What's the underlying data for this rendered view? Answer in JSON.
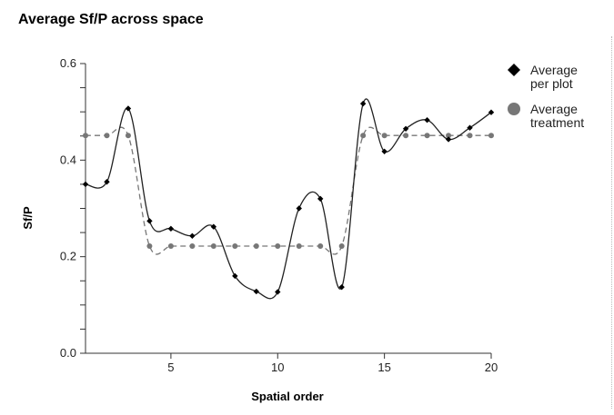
{
  "chart_data": {
    "type": "line",
    "title": "Average Sf/P across space",
    "xlabel": "Spatial order",
    "ylabel": "Sf/P",
    "xlim": [
      1,
      20
    ],
    "ylim": [
      0,
      0.6
    ],
    "x_ticks": [
      5,
      10,
      15,
      20
    ],
    "y_ticks": [
      0.0,
      0.2,
      0.4,
      0.6
    ],
    "y_tick_labels": [
      "0.0",
      "0.2",
      "0.4",
      "0.6"
    ],
    "legend_position": "right",
    "x": [
      1,
      2,
      3,
      4,
      5,
      6,
      7,
      8,
      9,
      10,
      11,
      12,
      13,
      14,
      15,
      16,
      17,
      18,
      19,
      20
    ],
    "series": [
      {
        "name": "Average per plot",
        "marker": "diamond",
        "line": "solid",
        "color": "#222222",
        "values": [
          0.35,
          0.355,
          0.507,
          0.274,
          0.258,
          0.243,
          0.262,
          0.16,
          0.128,
          0.127,
          0.3,
          0.32,
          0.137,
          0.517,
          0.418,
          0.465,
          0.483,
          0.443,
          0.467,
          0.499
        ]
      },
      {
        "name": "Average treatment",
        "marker": "circle",
        "line": "dashed",
        "color": "#777777",
        "values": [
          0.451,
          0.451,
          0.451,
          0.222,
          0.222,
          0.222,
          0.222,
          0.222,
          0.222,
          0.222,
          0.222,
          0.222,
          0.222,
          0.451,
          0.451,
          0.451,
          0.451,
          0.451,
          0.451,
          0.451
        ]
      }
    ],
    "legend": [
      {
        "line1": "Average",
        "line2": "per plot"
      },
      {
        "line1": "Average",
        "line2": "treatment"
      }
    ]
  }
}
